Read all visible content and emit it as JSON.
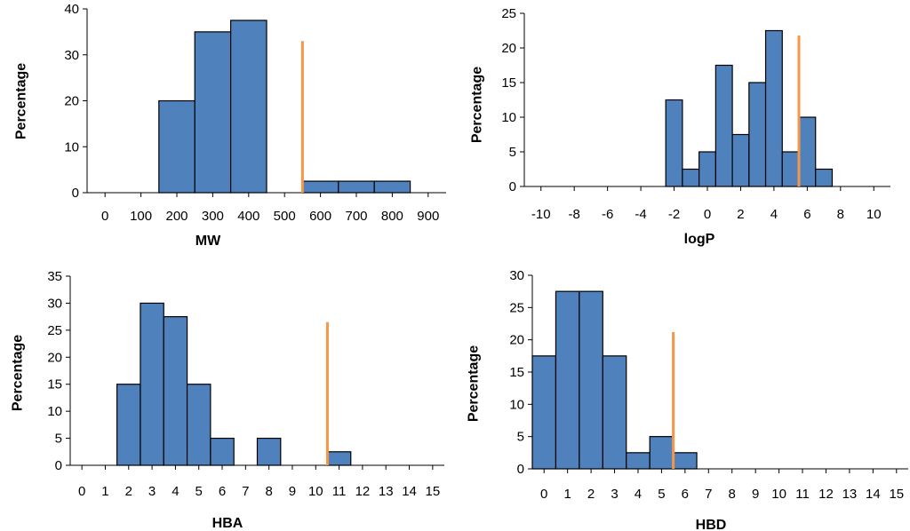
{
  "colors": {
    "bar_fill": "#4f81bd",
    "bar_stroke": "#000000",
    "threshold_line": "#f79646",
    "axis": "#000000"
  },
  "chart_data": [
    {
      "type": "bar",
      "title": "",
      "xlabel": "MW",
      "ylabel": "Percentage",
      "xlim": [
        -50,
        950
      ],
      "ylim": [
        0,
        40
      ],
      "y_ticks": [
        0,
        10,
        20,
        30,
        40
      ],
      "x_ticks": [
        0,
        100,
        200,
        300,
        400,
        500,
        600,
        700,
        800,
        900
      ],
      "x_tick_labels": [
        "0",
        "100",
        "200",
        "300",
        "400",
        "500",
        "600",
        "700",
        "800",
        "900"
      ],
      "bins": [
        [
          150,
          250
        ],
        [
          250,
          350
        ],
        [
          350,
          450
        ],
        [
          550,
          650
        ],
        [
          650,
          750
        ],
        [
          750,
          850
        ]
      ],
      "values": [
        20,
        35,
        37.5,
        2.5,
        2.5,
        2.5
      ],
      "threshold": {
        "x": 550,
        "height": 33
      }
    },
    {
      "type": "bar",
      "title": "",
      "xlabel": "logP",
      "ylabel": "Percentage",
      "xlim": [
        -11,
        11
      ],
      "ylim": [
        0,
        25
      ],
      "y_ticks": [
        0,
        5,
        10,
        15,
        20,
        25
      ],
      "x_ticks": [
        -10,
        -8,
        -6,
        -4,
        -2,
        0,
        2,
        4,
        6,
        8,
        10
      ],
      "x_tick_labels": [
        "-10",
        "-8",
        "-6",
        "-4",
        "-2",
        "0",
        "2",
        "4",
        "6",
        "8",
        "10"
      ],
      "bins": [
        [
          -2.5,
          -1.5
        ],
        [
          -1.5,
          -0.5
        ],
        [
          -0.5,
          0.5
        ],
        [
          0.5,
          1.5
        ],
        [
          1.5,
          2.5
        ],
        [
          2.5,
          3.5
        ],
        [
          3.5,
          4.5
        ],
        [
          4.5,
          5.5
        ],
        [
          5.5,
          6.5
        ],
        [
          6.5,
          7.5
        ]
      ],
      "values": [
        12.5,
        2.5,
        5,
        17.5,
        7.5,
        15,
        22.5,
        5,
        10,
        2.5
      ],
      "threshold": {
        "x": 5.5,
        "height": 21.8
      }
    },
    {
      "type": "bar",
      "title": "",
      "xlabel": "HBA",
      "ylabel": "Percentage",
      "xlim": [
        -0.5,
        15.5
      ],
      "ylim": [
        0,
        35
      ],
      "y_ticks": [
        0,
        5,
        10,
        15,
        20,
        25,
        30,
        35
      ],
      "x_ticks": [
        0,
        1,
        2,
        3,
        4,
        5,
        6,
        7,
        8,
        9,
        10,
        11,
        12,
        13,
        14,
        15
      ],
      "x_tick_labels": [
        "0",
        "1",
        "2",
        "3",
        "4",
        "5",
        "6",
        "7",
        "8",
        "9",
        "10",
        "11",
        "12",
        "13",
        "14",
        "15"
      ],
      "bins": [
        [
          1.5,
          2.5
        ],
        [
          2.5,
          3.5
        ],
        [
          3.5,
          4.5
        ],
        [
          4.5,
          5.5
        ],
        [
          5.5,
          6.5
        ],
        [
          7.5,
          8.5
        ],
        [
          10.5,
          11.5
        ]
      ],
      "values": [
        15,
        30,
        27.5,
        15,
        5,
        5,
        2.5
      ],
      "threshold": {
        "x": 10.5,
        "height": 26.5
      }
    },
    {
      "type": "bar",
      "title": "",
      "xlabel": "HBD",
      "ylabel": "Percentage",
      "xlim": [
        -0.5,
        15.5
      ],
      "ylim": [
        0,
        30
      ],
      "y_ticks": [
        0,
        5,
        10,
        15,
        20,
        25,
        30
      ],
      "x_ticks": [
        0,
        1,
        2,
        3,
        4,
        5,
        6,
        7,
        8,
        9,
        10,
        11,
        12,
        13,
        14,
        15
      ],
      "x_tick_labels": [
        "0",
        "1",
        "2",
        "3",
        "4",
        "5",
        "6",
        "7",
        "8",
        "9",
        "10",
        "11",
        "12",
        "13",
        "14",
        "15"
      ],
      "bins": [
        [
          -0.5,
          0.5
        ],
        [
          0.5,
          1.5
        ],
        [
          1.5,
          2.5
        ],
        [
          2.5,
          3.5
        ],
        [
          3.5,
          4.5
        ],
        [
          4.5,
          5.5
        ],
        [
          5.5,
          6.5
        ]
      ],
      "values": [
        17.5,
        27.5,
        27.5,
        17.5,
        2.5,
        5,
        2.5
      ],
      "threshold": {
        "x": 5.5,
        "height": 21.2
      }
    }
  ]
}
